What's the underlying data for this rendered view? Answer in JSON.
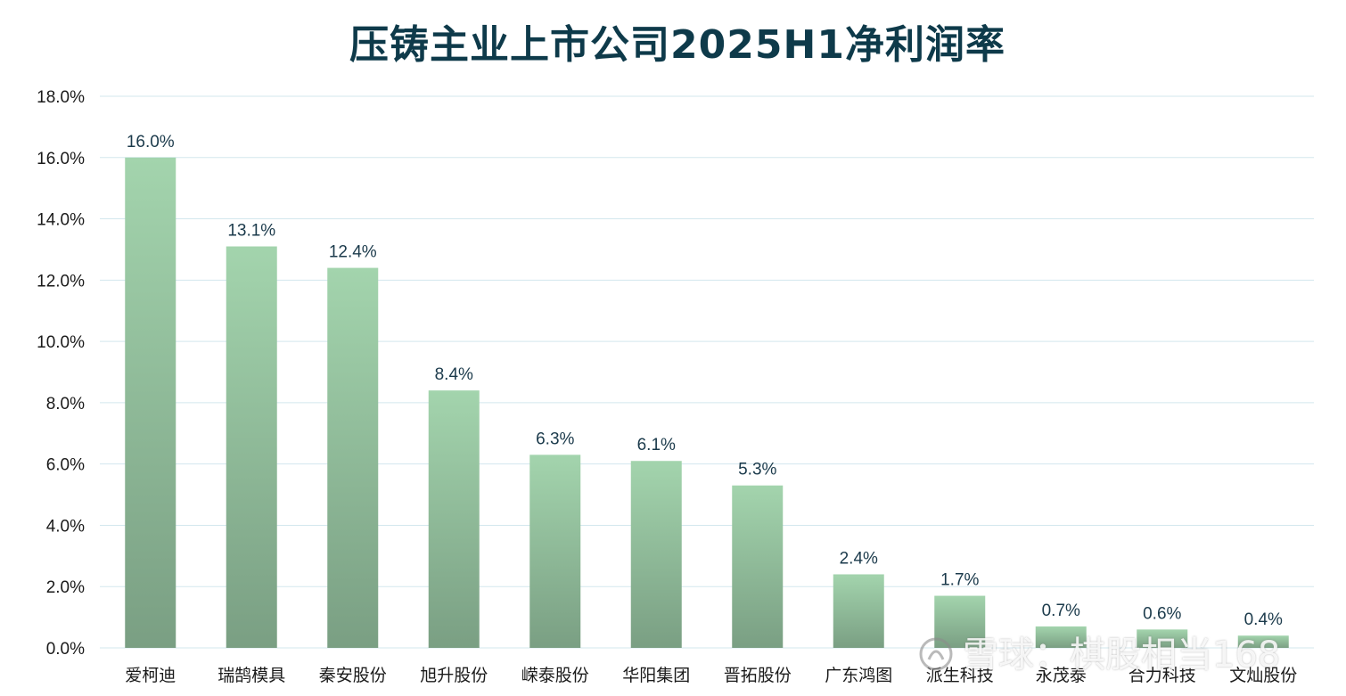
{
  "chart_data": {
    "type": "bar",
    "title": "压铸主业上市公司2025H1净利润率",
    "categories": [
      "爱柯迪",
      "瑞鹄模具",
      "秦安股份",
      "旭升股份",
      "嵘泰股份",
      "华阳集团",
      "晋拓股份",
      "广东鸿图",
      "派生科技",
      "永茂泰",
      "合力科技",
      "文灿股份"
    ],
    "values": [
      16.0,
      13.1,
      12.4,
      8.4,
      6.3,
      6.1,
      5.3,
      2.4,
      1.7,
      0.7,
      0.6,
      0.4
    ],
    "data_labels": [
      "16.0%",
      "13.1%",
      "12.4%",
      "8.4%",
      "6.3%",
      "6.1%",
      "5.3%",
      "2.4%",
      "1.7%",
      "0.7%",
      "0.6%",
      "0.4%"
    ],
    "ylim": [
      0,
      18
    ],
    "yticks": [
      "0.0%",
      "2.0%",
      "4.0%",
      "6.0%",
      "8.0%",
      "10.0%",
      "12.0%",
      "14.0%",
      "16.0%",
      "18.0%"
    ],
    "grid": true,
    "colors": {
      "bar_top": "#a3d4ad",
      "bar_bottom": "#7a9f83",
      "grid": "#d3e7ee",
      "title": "#0e3a4a",
      "data_label": "#1b3a4b"
    }
  },
  "watermark": {
    "text": "雪球：棋股相当168"
  }
}
